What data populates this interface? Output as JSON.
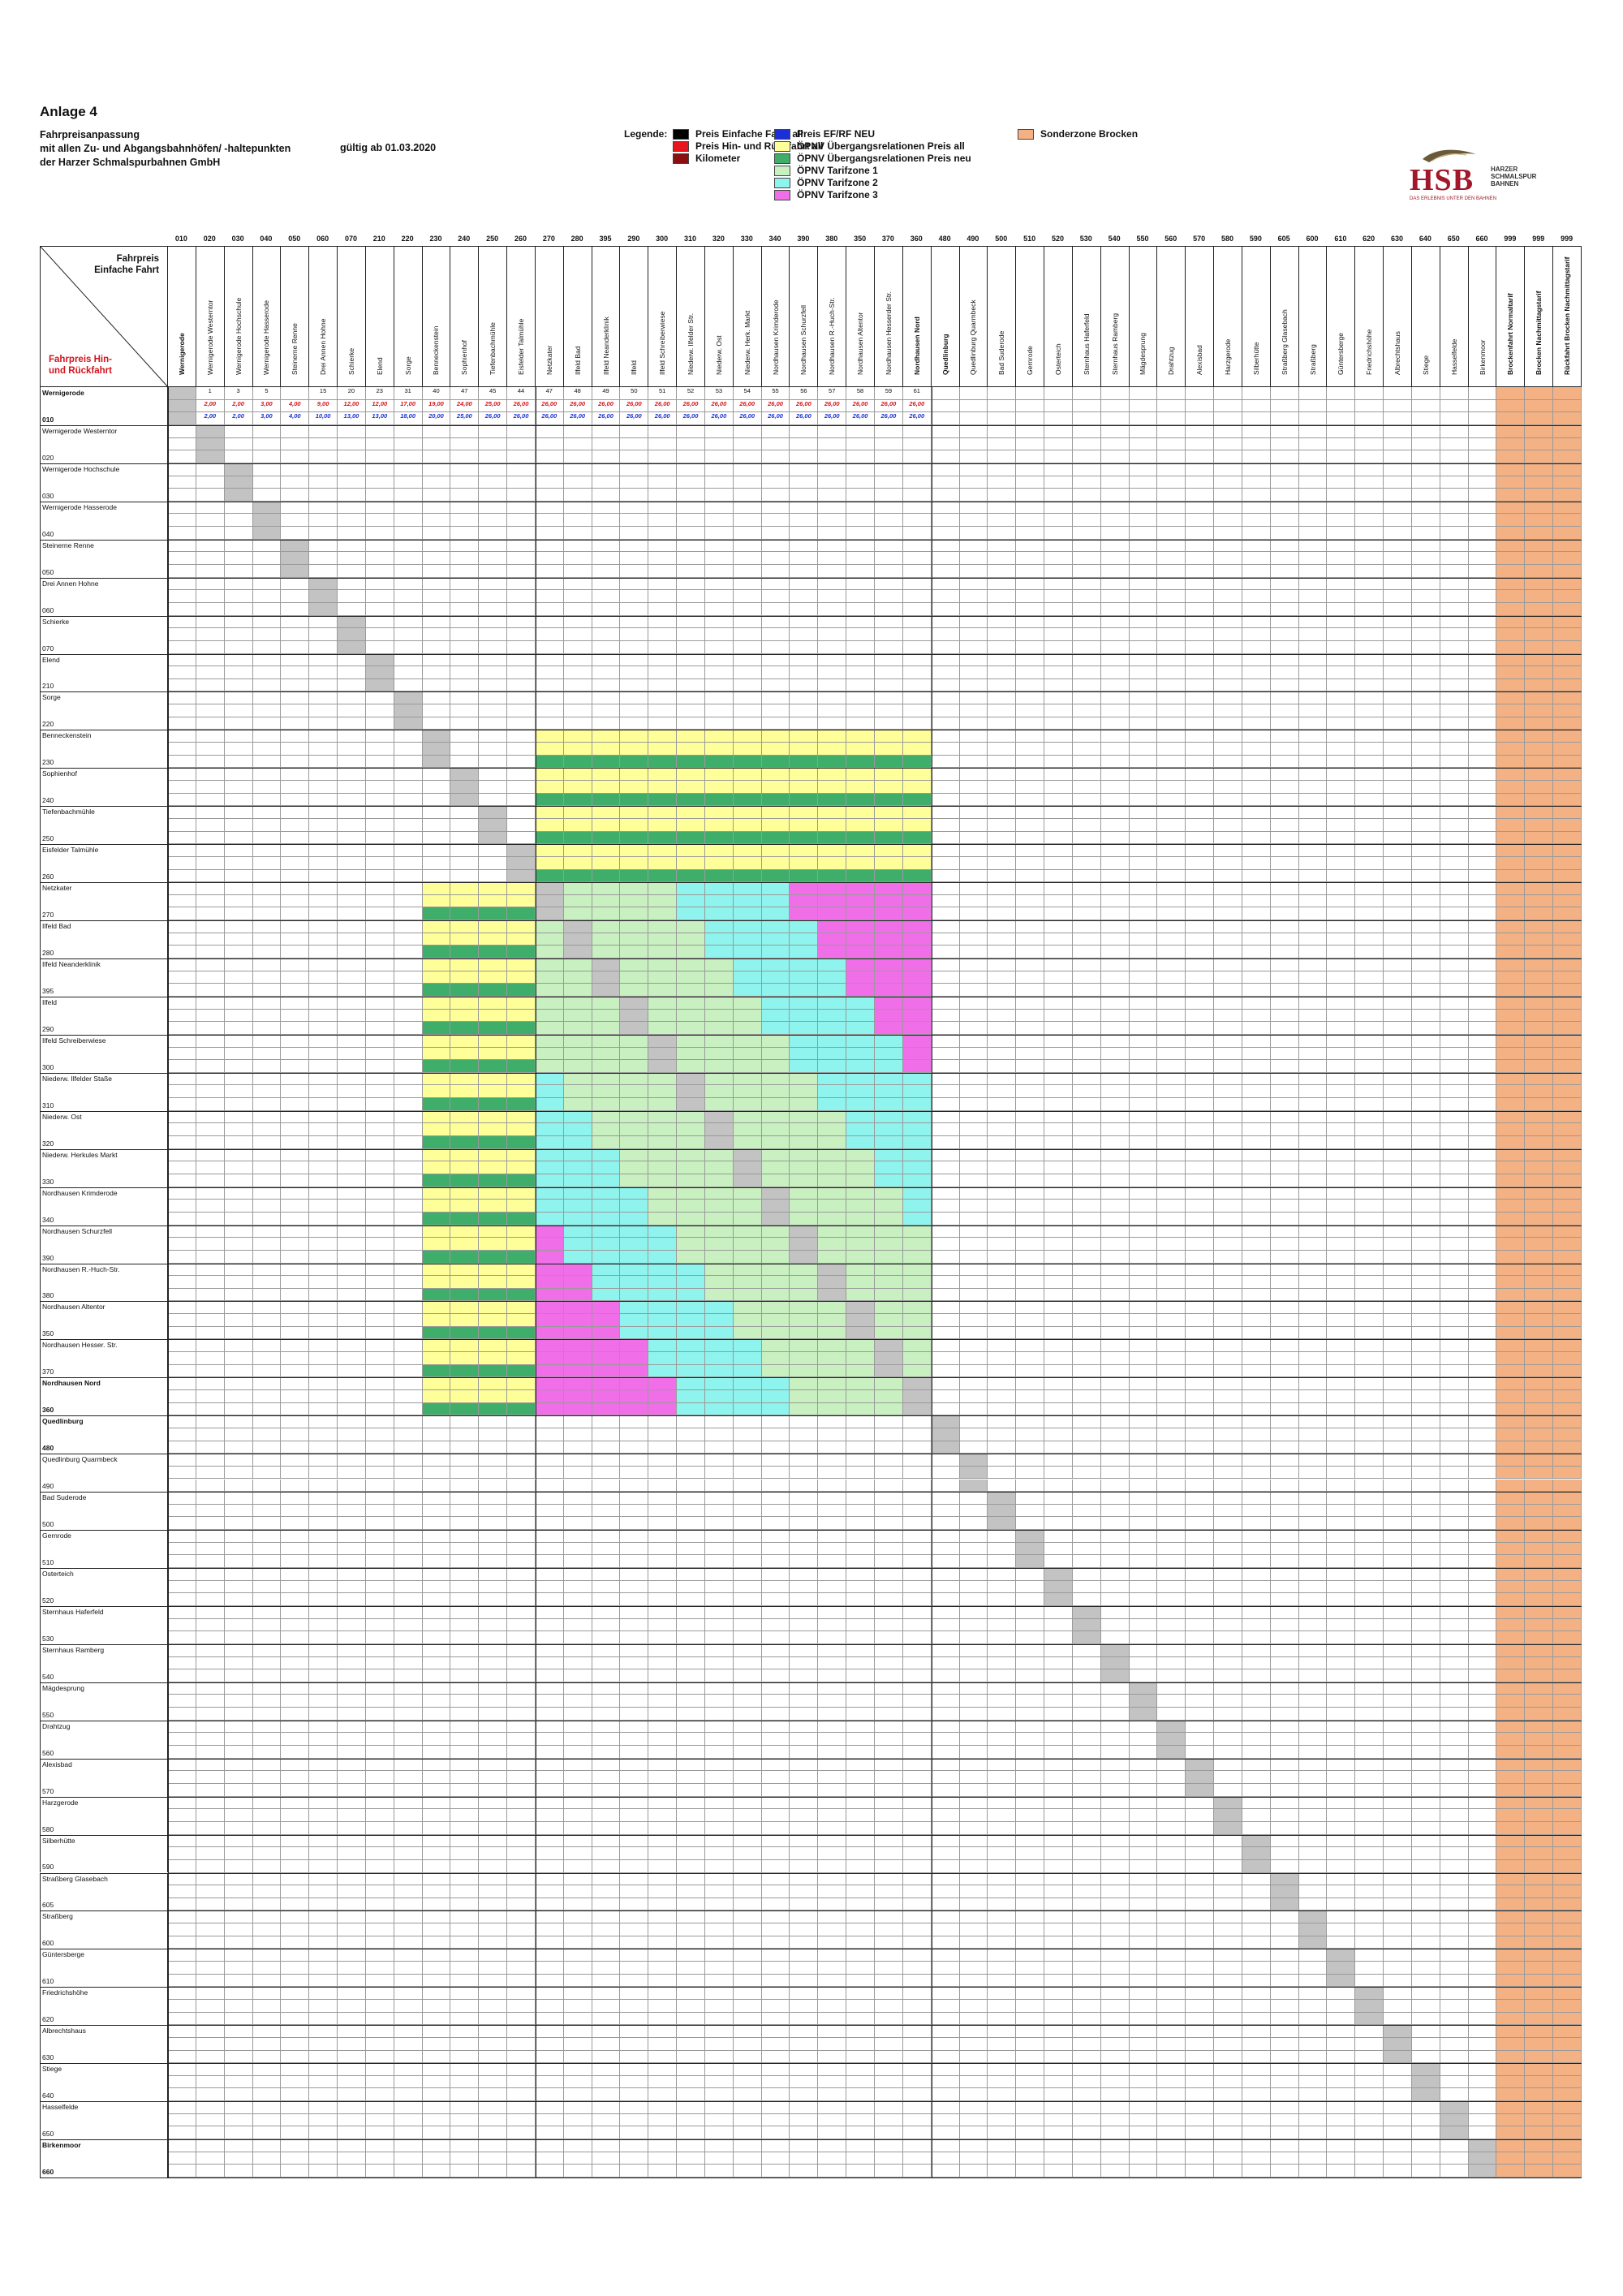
{
  "header": {
    "title": "Anlage 4",
    "subtitle_lines": [
      "Fahrpreisanpassung",
      "mit allen Zu- und Abgangsbahnhöfen/ -haltepunkten",
      "der Harzer Schmalspurbahnen GmbH"
    ],
    "valid_from": "gültig ab 01.03.2020"
  },
  "legend": {
    "label": "Legende:",
    "items": [
      {
        "text": "Preis Einfache Fahrt all",
        "color": "#000000"
      },
      {
        "text": "Preis Hin- und Rückfahrt all",
        "color": "#e8141e"
      },
      {
        "text": "Kilometer",
        "color": "#8b0f10"
      },
      {
        "text": "Preis EF/RF NEU",
        "color": "#1a2fd6"
      },
      {
        "text": "ÖPNV Übergangsrelationen Preis all",
        "color": "#ffff9a"
      },
      {
        "text": "ÖPNV Übergangsrelationen Preis neu",
        "color": "#3fae6a"
      },
      {
        "text": "ÖPNV Tarifzone 1",
        "color": "#c8f0c0"
      },
      {
        "text": "ÖPNV Tarifzone 2",
        "color": "#8ff3ee"
      },
      {
        "text": "ÖPNV Tarifzone 3",
        "color": "#f06ee8"
      },
      {
        "text": "Sonderzone Brocken",
        "color": "#f4b183"
      }
    ]
  },
  "logo": {
    "brand": "HSB",
    "sub": "HARZER SCHMALSPUR BAHNEN",
    "tagline": "DAS ERLEBNIS UNTER DEN BAHNEN"
  },
  "corner": {
    "top": "Fahrpreis Einfache Fahrt",
    "bottom": "Fahrpreis Hin- und Rückfahrt"
  },
  "columns": [
    {
      "code": "010",
      "name": "Wernigerode",
      "bold": true
    },
    {
      "code": "020",
      "name": "Wernigerode Westerntor"
    },
    {
      "code": "030",
      "name": "Wernigerode Hochschule"
    },
    {
      "code": "040",
      "name": "Wernigerode Hasserode"
    },
    {
      "code": "050",
      "name": "Steinerne Renne"
    },
    {
      "code": "060",
      "name": "Drei Annen Hohne"
    },
    {
      "code": "070",
      "name": "Schierke"
    },
    {
      "code": "210",
      "name": "Elend"
    },
    {
      "code": "220",
      "name": "Sorge"
    },
    {
      "code": "230",
      "name": "Benneckenstein"
    },
    {
      "code": "240",
      "name": "Sophienhof"
    },
    {
      "code": "250",
      "name": "Tiefenbachmühle"
    },
    {
      "code": "260",
      "name": "Eisfelder Talmühle"
    },
    {
      "code": "270",
      "name": "Netzkater"
    },
    {
      "code": "280",
      "name": "Ilfeld Bad"
    },
    {
      "code": "395",
      "name": "Ilfeld Neanderklinik"
    },
    {
      "code": "290",
      "name": "Ilfeld"
    },
    {
      "code": "300",
      "name": "Ilfeld Schreiberwiese"
    },
    {
      "code": "310",
      "name": "Niederw. Ilfelder Str."
    },
    {
      "code": "320",
      "name": "Niederw. Ost"
    },
    {
      "code": "330",
      "name": "Niederw. Herk. Markt"
    },
    {
      "code": "340",
      "name": "Nordhausen Krimderode"
    },
    {
      "code": "390",
      "name": "Nordhausen Schurzfell"
    },
    {
      "code": "380",
      "name": "Nordhausen R.-Huch-Str."
    },
    {
      "code": "350",
      "name": "Nordhausen Altentor"
    },
    {
      "code": "370",
      "name": "Nordhausen Hesserder Str."
    },
    {
      "code": "360",
      "name": "Nordhausen Nord",
      "bold": true
    },
    {
      "code": "480",
      "name": "Quedlinburg",
      "bold": true
    },
    {
      "code": "490",
      "name": "Quedlinburg Quarmbeck"
    },
    {
      "code": "500",
      "name": "Bad Suderode"
    },
    {
      "code": "510",
      "name": "Gernrode"
    },
    {
      "code": "520",
      "name": "Osterteich"
    },
    {
      "code": "530",
      "name": "Sternhaus Haferfeld"
    },
    {
      "code": "540",
      "name": "Sternhaus Ramberg"
    },
    {
      "code": "550",
      "name": "Mägdesprung"
    },
    {
      "code": "560",
      "name": "Drahtzug"
    },
    {
      "code": "570",
      "name": "Alexisbad"
    },
    {
      "code": "580",
      "name": "Harzgerode"
    },
    {
      "code": "590",
      "name": "Silberhütte"
    },
    {
      "code": "605",
      "name": "Straßberg Glasebach"
    },
    {
      "code": "600",
      "name": "Straßberg"
    },
    {
      "code": "610",
      "name": "Güntersberge"
    },
    {
      "code": "620",
      "name": "Friedrichshöhe"
    },
    {
      "code": "630",
      "name": "Albrechtshaus"
    },
    {
      "code": "640",
      "name": "Stiege"
    },
    {
      "code": "650",
      "name": "Hasselfelde"
    },
    {
      "code": "660",
      "name": "Birkenmoor"
    },
    {
      "code": "999",
      "name": "Brockenfahrt Normaltarif",
      "bold": true
    },
    {
      "code": "999",
      "name": "Brocken Nachmittagstarif",
      "bold": true
    },
    {
      "code": "999",
      "name": "Rückfahrt Brocken Nachmittagstarif",
      "bold": true
    }
  ],
  "rows": [
    {
      "name": "Wernigerode",
      "code": "010",
      "bold": true
    },
    {
      "name": "Wernigerode Westerntor",
      "code": "020"
    },
    {
      "name": "Wernigerode Hochschule",
      "code": "030"
    },
    {
      "name": "Wernigerode Hasserode",
      "code": "040"
    },
    {
      "name": "Steinerne Renne",
      "code": "050"
    },
    {
      "name": "Drei Annen Hohne",
      "code": "060"
    },
    {
      "name": "Schierke",
      "code": "070"
    },
    {
      "name": "Elend",
      "code": "210"
    },
    {
      "name": "Sorge",
      "code": "220"
    },
    {
      "name": "Benneckenstein",
      "code": "230"
    },
    {
      "name": "Sophienhof",
      "code": "240"
    },
    {
      "name": "Tiefenbachmühle",
      "code": "250"
    },
    {
      "name": "Eisfelder Talmühle",
      "code": "260"
    },
    {
      "name": "Netzkater",
      "code": "270"
    },
    {
      "name": "Ilfeld Bad",
      "code": "280"
    },
    {
      "name": "Ilfeld Neanderklinik",
      "code": "395"
    },
    {
      "name": "Ilfeld",
      "code": "290"
    },
    {
      "name": "Ilfeld Schreiberwiese",
      "code": "300"
    },
    {
      "name": "Niederw. Ilfelder Staße",
      "code": "310"
    },
    {
      "name": "Niederw. Ost",
      "code": "320"
    },
    {
      "name": "Niederw. Herkules Markt",
      "code": "330"
    },
    {
      "name": "Nordhausen Krimderode",
      "code": "340"
    },
    {
      "name": "Nordhausen Schurzfell",
      "code": "390"
    },
    {
      "name": "Nordhausen R.-Huch-Str.",
      "code": "380"
    },
    {
      "name": "Nordhausen Altentor",
      "code": "350"
    },
    {
      "name": "Nordhausen Hesser. Str.",
      "code": "370"
    },
    {
      "name": "Nordhausen Nord",
      "code": "360",
      "bold": true
    },
    {
      "name": "Quedlinburg",
      "code": "480",
      "bold": true
    },
    {
      "name": "Quedlinburg Quarmbeck",
      "code": "490"
    },
    {
      "name": "Bad Suderode",
      "code": "500"
    },
    {
      "name": "Gernrode",
      "code": "510"
    },
    {
      "name": "Osterteich",
      "code": "520"
    },
    {
      "name": "Sternhaus Haferfeld",
      "code": "530"
    },
    {
      "name": "Sternhaus Ramberg",
      "code": "540"
    },
    {
      "name": "Mägdesprung",
      "code": "550"
    },
    {
      "name": "Drahtzug",
      "code": "560"
    },
    {
      "name": "Alexisbad",
      "code": "570"
    },
    {
      "name": "Harzgerode",
      "code": "580"
    },
    {
      "name": "Silberhütte",
      "code": "590"
    },
    {
      "name": "Straßberg Glasebach",
      "code": "605"
    },
    {
      "name": "Straßberg",
      "code": "600"
    },
    {
      "name": "Güntersberge",
      "code": "610"
    },
    {
      "name": "Friedrichshöhe",
      "code": "620"
    },
    {
      "name": "Albrechtshaus",
      "code": "630"
    },
    {
      "name": "Stiege",
      "code": "640"
    },
    {
      "name": "Hasselfelde",
      "code": "650"
    },
    {
      "name": "Birkenmoor",
      "code": "660",
      "bold": true
    }
  ],
  "matrix_sample": {
    "note_rows": [
      {
        "row": "010",
        "km": [
          "",
          "1",
          "3",
          "5",
          "",
          "15",
          "20",
          "23",
          "31",
          "40",
          "47",
          "45",
          "44",
          "47",
          "48",
          "49",
          "50",
          "51",
          "52",
          "53",
          "54",
          "55",
          "56",
          "57",
          "58",
          "59",
          "61"
        ],
        "ef": [
          "",
          "2,00",
          "2,00",
          "3,00",
          "4,00",
          "9,00",
          "12,00",
          "12,00",
          "17,00",
          "19,00",
          "24,00",
          "25,00",
          "26,00",
          "26,00",
          "26,00",
          "26,00",
          "26,00",
          "26,00",
          "26,00",
          "26,00",
          "26,00",
          "26,00",
          "26,00",
          "26,00",
          "26,00",
          "26,00",
          "26,00"
        ],
        "ef_new": [
          "",
          "2,00",
          "2,00",
          "3,00",
          "4,00",
          "10,00",
          "13,00",
          "13,00",
          "18,00",
          "20,00",
          "25,00",
          "26,00",
          "26,00",
          "26,00",
          "26,00",
          "26,00",
          "26,00",
          "26,00",
          "26,00",
          "26,00",
          "26,00",
          "26,00",
          "26,00",
          "26,00",
          "26,00",
          "26,00",
          "26,00"
        ]
      }
    ]
  }
}
